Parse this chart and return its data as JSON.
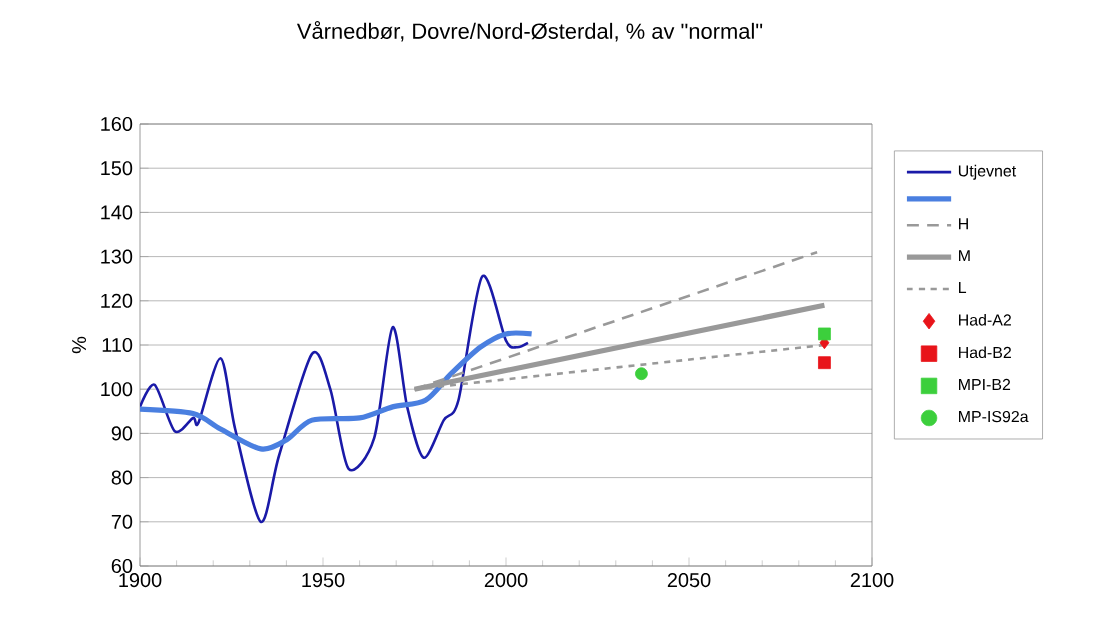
{
  "chart_data": {
    "type": "line",
    "title": "Vårnedbør, Dovre/Nord-Østerdal, % av \"normal\"",
    "ylabel": "%",
    "xlim": [
      1900,
      2100
    ],
    "xticks": [
      1900,
      1950,
      2000,
      2050,
      2100
    ],
    "ylim": [
      60,
      160
    ],
    "yticks": [
      60,
      70,
      80,
      90,
      100,
      110,
      120,
      130,
      140,
      150,
      160
    ],
    "grid": "y",
    "legend": "right",
    "series": [
      {
        "name": "Utjevnet",
        "color": "#1a1aa8",
        "marker": "none",
        "line_style": "solid",
        "x": [
          1900,
          1904,
          1909.5,
          1914.5,
          1916,
          1922,
          1926,
          1933,
          1938,
          1947,
          1952,
          1957,
          1964,
          1969,
          1973,
          1977.5,
          1983,
          1987,
          1993.5,
          2000,
          2003,
          2006
        ],
        "values": [
          96,
          101,
          90.5,
          93.5,
          92.5,
          107,
          91,
          70,
          85,
          108,
          100,
          82,
          89,
          114,
          96,
          84.5,
          93,
          97.5,
          125.5,
          111,
          109.5,
          110.5
        ]
      },
      {
        "color": "#4a7fe0",
        "marker": "none",
        "line_style": "solid",
        "x": [
          1900,
          1914.5,
          1922,
          1933,
          1940,
          1947,
          1960,
          1969,
          1978,
          1985,
          1993,
          2000,
          2007
        ],
        "values": [
          95.5,
          94.5,
          91,
          86.5,
          88.5,
          93,
          93.5,
          96,
          97.5,
          103.5,
          109.5,
          112.5,
          112.5
        ]
      },
      {
        "name": "H",
        "color": "#999999",
        "marker": "none",
        "line_style": "dashed",
        "x": [
          1975,
          2085
        ],
        "values": [
          100,
          131
        ]
      },
      {
        "name": "M",
        "color": "#999999",
        "marker": "none",
        "line_style": "solid",
        "x": [
          1975,
          2087
        ],
        "values": [
          100,
          119
        ]
      },
      {
        "name": "L",
        "color": "#999999",
        "marker": "none",
        "line_style": "dashed",
        "x": [
          1975,
          2087
        ],
        "values": [
          100,
          110
        ]
      },
      {
        "name": "Had-A2",
        "type": "scatter",
        "color": "#e8141a",
        "marker": "diamond",
        "x": [
          2087
        ],
        "values": [
          110.5
        ]
      },
      {
        "name": "Had-B2",
        "type": "scatter",
        "color": "#e8141a",
        "marker": "square",
        "x": [
          2087
        ],
        "values": [
          106
        ]
      },
      {
        "name": "MPI-B2",
        "type": "scatter",
        "color": "#3ccf3c",
        "marker": "square",
        "x": [
          2087
        ],
        "values": [
          112.5
        ]
      },
      {
        "name": "MP-IS92a",
        "type": "scatter",
        "color": "#3ccf3c",
        "marker": "circle",
        "x": [
          2037
        ],
        "values": [
          103.5
        ]
      }
    ]
  }
}
